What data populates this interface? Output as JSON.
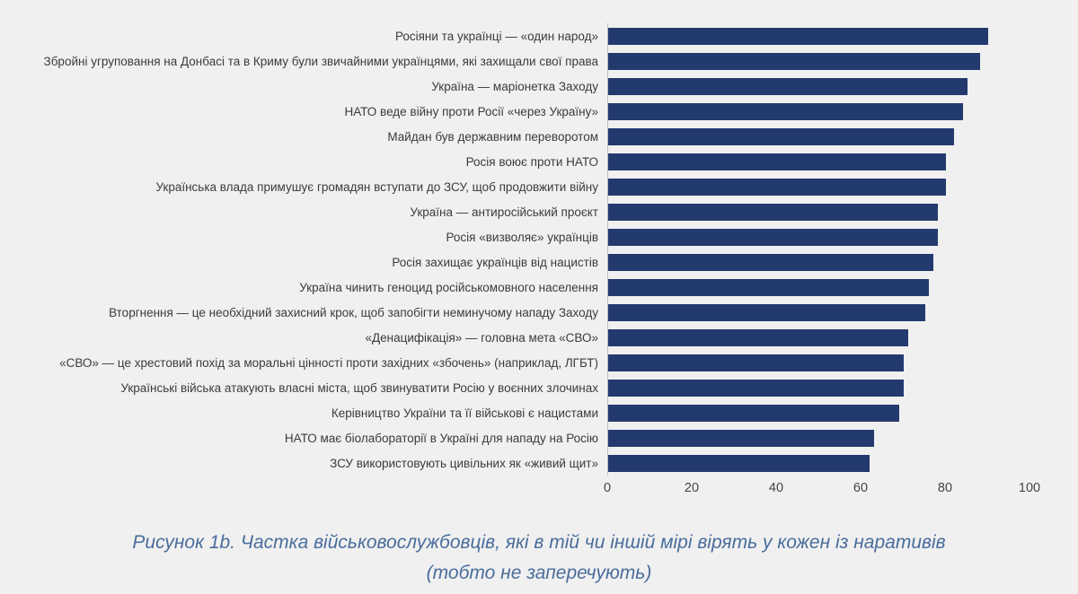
{
  "chart_data": {
    "type": "bar",
    "orientation": "horizontal",
    "categories": [
      "Росіяни та українці — «один народ»",
      "Збройні угруповання на Донбасі та в Криму були звичайними українцями, які захищали свої права",
      "Україна — маріонетка Заходу",
      "НАТО веде війну проти Росії «через Україну»",
      "Майдан був державним переворотом",
      "Росія воює проти НАТО",
      "Українська влада примушує громадян вступати до ЗСУ, щоб продовжити війну",
      "Україна — антиросійський проєкт",
      "Росія «визволяє» українців",
      "Росія захищає українців від нацистів",
      "Україна чинить геноцид російськомовного населення",
      "Вторгнення — це необхідний захисний крок, щоб запобігти неминучому нападу Заходу",
      "«Денацифікація» — головна мета «СВО»",
      "«СВО» — це хрестовий похід за моральні цінності проти західних «збочень» (наприклад, ЛГБТ)",
      "Українські війська атакують власні міста, щоб звинуватити Росію у воєнних злочинах",
      "Керівництво України та її військові є нацистами",
      "НАТО має біолабораторії в Україні для нападу на Росію",
      "ЗСУ використовують цивільних як «живий щит»"
    ],
    "values": [
      90,
      88,
      85,
      84,
      82,
      80,
      80,
      78,
      78,
      77,
      76,
      75,
      71,
      70,
      70,
      69,
      63,
      62
    ],
    "xlim": [
      0,
      100
    ],
    "x_ticks": [
      0,
      20,
      40,
      60,
      80,
      100
    ],
    "bar_color": "#233a6f",
    "grid": false,
    "legend": "none",
    "title": "",
    "xlabel": "",
    "ylabel": ""
  },
  "caption": {
    "line1": "Рисунок 1b. Частка військовослужбовців, які в тій чи іншій мірі вірять у кожен із наративів",
    "line2": "(тобто не заперечують)"
  }
}
